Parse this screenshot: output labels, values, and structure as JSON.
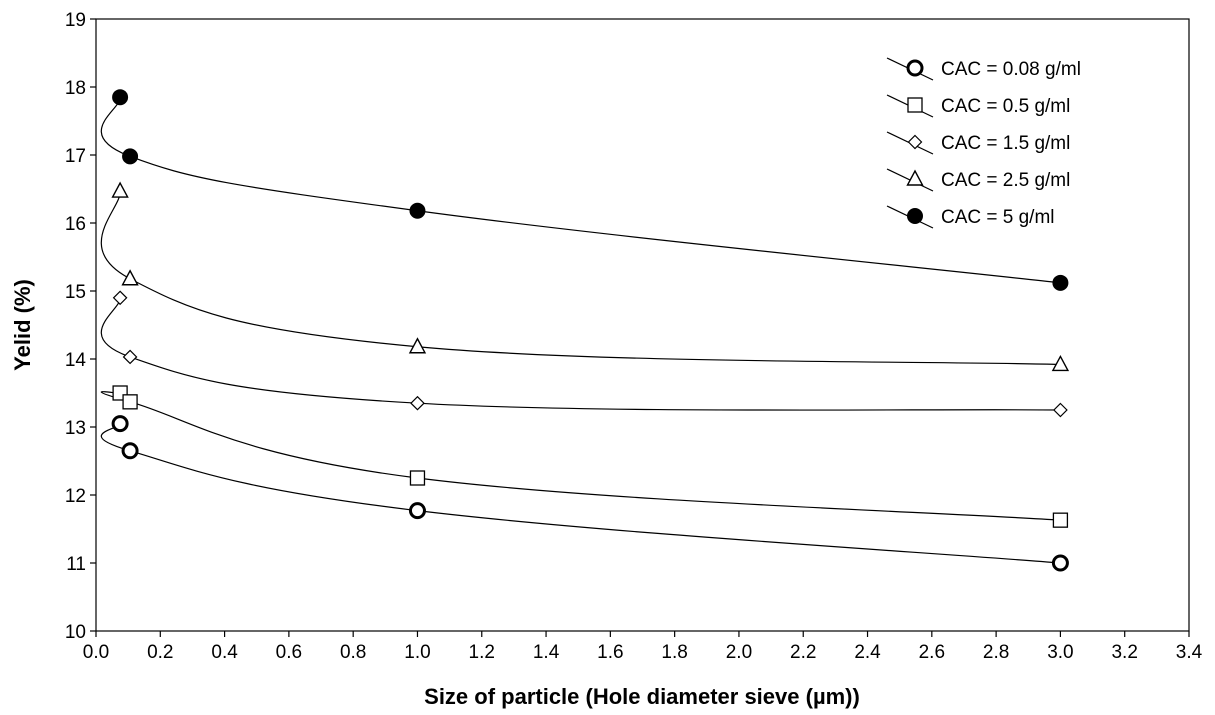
{
  "chart_data": {
    "type": "line",
    "title": "",
    "xlabel": "Size of particle (Hole diameter sieve (µm))",
    "ylabel": "Yelid (%)",
    "xlim": [
      0.0,
      3.4
    ],
    "ylim": [
      10,
      19
    ],
    "xticks": [
      "0.0",
      "0.2",
      "0.4",
      "0.6",
      "0.8",
      "1.0",
      "1.2",
      "1.4",
      "1.6",
      "1.8",
      "2.0",
      "2.2",
      "2.4",
      "2.6",
      "2.8",
      "3.0",
      "3.2",
      "3.4"
    ],
    "yticks": [
      "10",
      "11",
      "12",
      "13",
      "14",
      "15",
      "16",
      "17",
      "18",
      "19"
    ],
    "grid": false,
    "legend_position": "top-right",
    "series": [
      {
        "name": "CAC = 0.08 g/ml",
        "marker": "circle-open-bold",
        "x": [
          0.075,
          0.106,
          1.0,
          3.0
        ],
        "y": [
          13.05,
          12.65,
          11.77,
          11.0
        ]
      },
      {
        "name": "CAC = 0.5 g/ml",
        "marker": "square-open",
        "x": [
          0.075,
          0.106,
          1.0,
          3.0
        ],
        "y": [
          13.5,
          13.37,
          12.25,
          11.63
        ]
      },
      {
        "name": "CAC = 1.5 g/ml",
        "marker": "diamond-open",
        "x": [
          0.075,
          0.106,
          1.0,
          3.0
        ],
        "y": [
          14.9,
          14.03,
          13.35,
          13.25
        ]
      },
      {
        "name": "CAC = 2.5 g/ml",
        "marker": "triangle-open",
        "x": [
          0.075,
          0.106,
          1.0,
          3.0
        ],
        "y": [
          16.47,
          15.18,
          14.18,
          13.92
        ]
      },
      {
        "name": "CAC = 5 g/ml",
        "marker": "circle-filled",
        "x": [
          0.075,
          0.106,
          1.0,
          3.0
        ],
        "y": [
          17.85,
          16.98,
          16.18,
          15.12
        ]
      }
    ]
  }
}
